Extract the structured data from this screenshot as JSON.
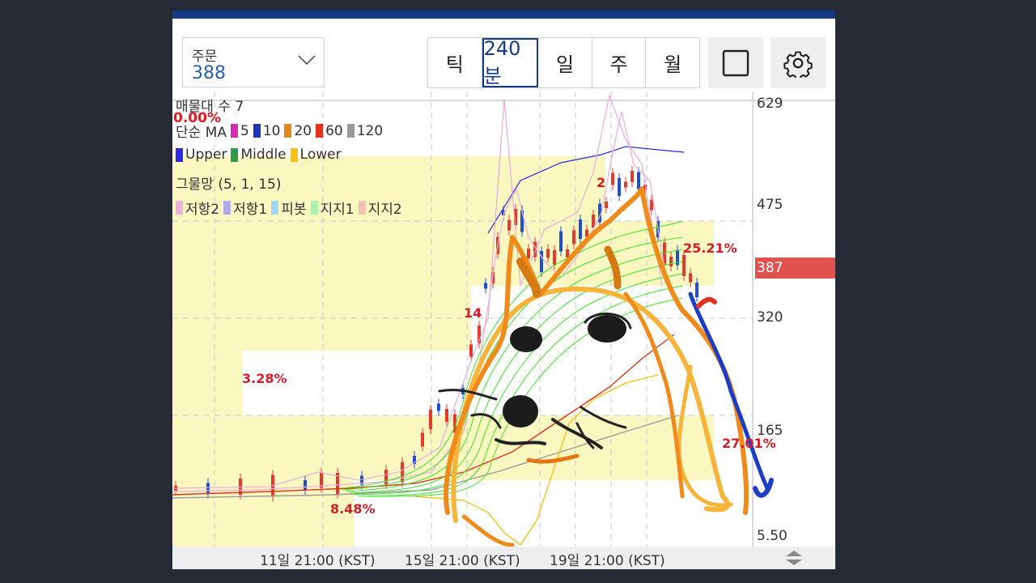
{
  "toolbar": {
    "order_label": "주문",
    "order_value": "388",
    "periods": [
      "틱",
      "240분",
      "일",
      "주",
      "월"
    ],
    "active_period": "240분"
  },
  "legend": {
    "volume_profile": "매물대 수 7",
    "zero_pct": "0.00%",
    "ma_label": "단순 MA",
    "ma_items": [
      {
        "label": "5",
        "color": "#d62bb5"
      },
      {
        "label": "10",
        "color": "#1d36b8"
      },
      {
        "label": "20",
        "color": "#e08a1e"
      },
      {
        "label": "60",
        "color": "#e2321b"
      },
      {
        "label": "120",
        "color": "#9a9a9a"
      }
    ],
    "band_items": [
      {
        "label": "Upper",
        "color": "#2b2be0"
      },
      {
        "label": "Middle",
        "color": "#2e9a4d"
      },
      {
        "label": "Lower",
        "color": "#f6c21a"
      }
    ],
    "grid_label": "그물망 (5, 1, 15)",
    "pivot_items": [
      {
        "label": "저항2",
        "color": "#f2b0dd"
      },
      {
        "label": "저항1",
        "color": "#b0a9ea"
      },
      {
        "label": "피봇",
        "color": "#9fd6f2"
      },
      {
        "label": "지지1",
        "color": "#aef0b0"
      },
      {
        "label": "지지2",
        "color": "#f6c0b0"
      }
    ]
  },
  "profile_pcts": {
    "p1": "25.21%",
    "p2": "14",
    "p3": "3.28%",
    "p4": "27.01%",
    "p5": "8.48%",
    "p6": "2"
  },
  "price_axis": {
    "ticks": [
      "629",
      "475",
      "320",
      "165",
      "5.50"
    ],
    "current": "387",
    "current_color": "#e0524e"
  },
  "time_axis": {
    "labels": [
      "11일 21:00 (KST)",
      "15일 21:00 (KST)",
      "19일 21:00 (KST)"
    ]
  },
  "colors": {
    "profile_fill": "#fbf7c0",
    "header_bar": "#173a86",
    "drawing_orange": "#f08a1a",
    "drawing_light_orange": "#f7b43a",
    "drawing_blue": "#1c3ec6"
  }
}
